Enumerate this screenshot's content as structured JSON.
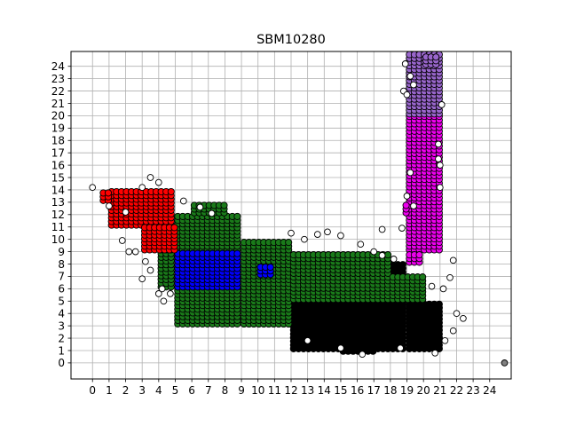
{
  "chart_data": {
    "type": "scatter",
    "title": "SBM10280",
    "xlabel": "",
    "ylabel": "",
    "xlim": [
      -1.3,
      25.3
    ],
    "ylim": [
      -1.3,
      25.2
    ],
    "xticks": [
      0,
      1,
      2,
      3,
      4,
      5,
      6,
      7,
      8,
      9,
      10,
      11,
      12,
      13,
      14,
      15,
      16,
      17,
      18,
      19,
      20,
      21,
      22,
      23,
      24
    ],
    "yticks": [
      0,
      1,
      2,
      3,
      4,
      5,
      6,
      7,
      8,
      9,
      10,
      11,
      12,
      13,
      14,
      15,
      16,
      17,
      18,
      19,
      20,
      21,
      22,
      23,
      24
    ],
    "grid": true,
    "marker_edge_color": "#000000",
    "regions": [
      {
        "color": "#000000",
        "cells": [
          [
            9,
            3,
            19,
            8
          ],
          [
            19,
            1,
            21,
            5
          ],
          [
            12,
            1,
            19,
            3
          ],
          [
            15,
            0.8,
            17,
            1
          ]
        ]
      },
      {
        "color": "#1a7a1a",
        "cells": [
          [
            5,
            3,
            9,
            12
          ],
          [
            9,
            3,
            12,
            10
          ],
          [
            12,
            5,
            18,
            9
          ],
          [
            4,
            6,
            5,
            10
          ],
          [
            18,
            5,
            20,
            7
          ],
          [
            6,
            12,
            8,
            13
          ]
        ]
      },
      {
        "color": "#0000ff",
        "cells": [
          [
            5,
            6,
            9,
            9
          ],
          [
            10,
            7,
            11,
            8
          ]
        ]
      },
      {
        "color": "#ff0000",
        "cells": [
          [
            1,
            11,
            5,
            14
          ],
          [
            3,
            9,
            5,
            11
          ],
          [
            0.5,
            13,
            1,
            14
          ]
        ]
      },
      {
        "color": "#ee00ee",
        "cells": [
          [
            19,
            9,
            21,
            20
          ],
          [
            18.8,
            12,
            19,
            13
          ],
          [
            19,
            8,
            20,
            9
          ]
        ]
      },
      {
        "color": "#9966cc",
        "cells": [
          [
            19,
            20,
            21,
            25
          ],
          [
            20,
            24,
            21,
            25
          ]
        ]
      }
    ],
    "outliers_color": "#ffffff",
    "outliers": [
      [
        0,
        14.2
      ],
      [
        1,
        12.7
      ],
      [
        2,
        12.2
      ],
      [
        3,
        14.2
      ],
      [
        3.5,
        15
      ],
      [
        4,
        14.6
      ],
      [
        2.2,
        9
      ],
      [
        2.6,
        9
      ],
      [
        1.8,
        9.9
      ],
      [
        3.2,
        8.2
      ],
      [
        3.5,
        7.5
      ],
      [
        4.2,
        6
      ],
      [
        4.3,
        5
      ],
      [
        4,
        5.6
      ],
      [
        3,
        6.8
      ],
      [
        4.7,
        5.6
      ],
      [
        5.5,
        13.1
      ],
      [
        6.5,
        12.6
      ],
      [
        7.2,
        12.1
      ],
      [
        12,
        10.5
      ],
      [
        12.8,
        10
      ],
      [
        13.6,
        10.4
      ],
      [
        14.2,
        10.6
      ],
      [
        15,
        10.3
      ],
      [
        16.2,
        9.6
      ],
      [
        17,
        9
      ],
      [
        17.5,
        8.7
      ],
      [
        18.2,
        8.4
      ],
      [
        13,
        1.8
      ],
      [
        15,
        1.2
      ],
      [
        16.3,
        0.7
      ],
      [
        18.6,
        1.2
      ],
      [
        20.7,
        0.8
      ],
      [
        21.3,
        1.8
      ],
      [
        21.8,
        2.6
      ],
      [
        22,
        4
      ],
      [
        22.4,
        3.6
      ],
      [
        21.6,
        6.9
      ],
      [
        21.8,
        8.3
      ],
      [
        20.5,
        6.2
      ],
      [
        21.2,
        6
      ],
      [
        17.5,
        10.8
      ],
      [
        19.2,
        15.4
      ],
      [
        18.7,
        10.9
      ],
      [
        19,
        13.5
      ],
      [
        21,
        16
      ],
      [
        20.9,
        17.7
      ],
      [
        21.1,
        20.9
      ],
      [
        18.9,
        24.2
      ],
      [
        19.2,
        23.2
      ],
      [
        19.4,
        22.5
      ],
      [
        18.8,
        22
      ],
      [
        19,
        21.7
      ],
      [
        20.9,
        16.5
      ],
      [
        21,
        14.2
      ],
      [
        19.4,
        12.7
      ]
    ],
    "isolated_points": [
      {
        "x": 24.9,
        "y": 0,
        "color": "#808080"
      }
    ]
  }
}
